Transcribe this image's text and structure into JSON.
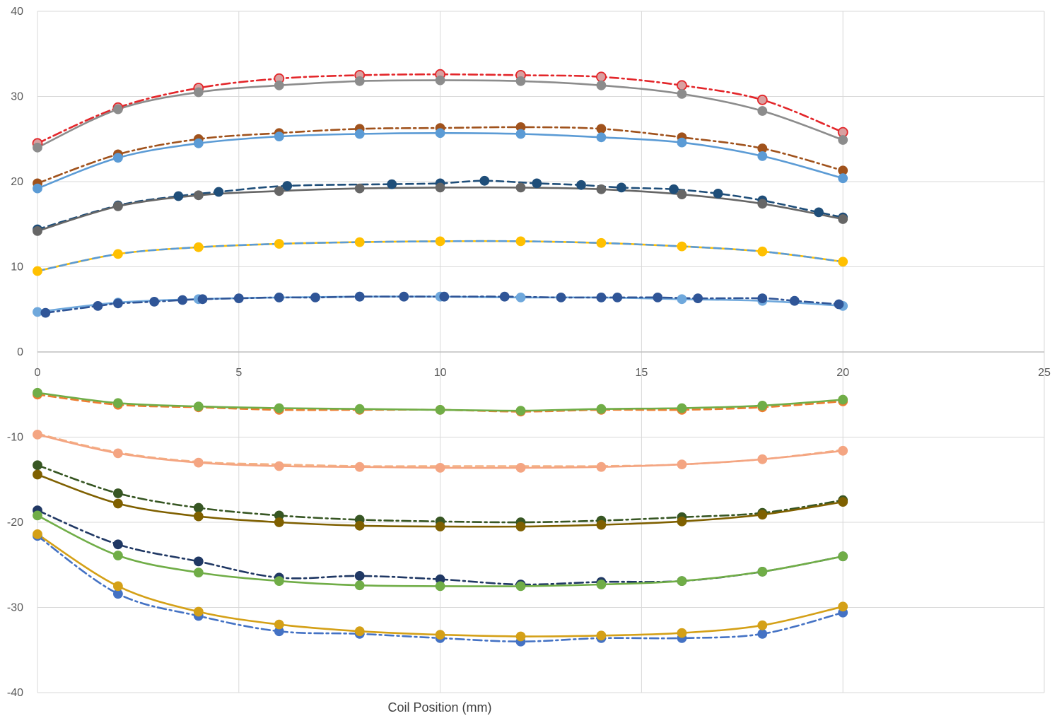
{
  "chart_data": {
    "type": "scatter",
    "title": "",
    "xlabel": "Coil Position (mm)",
    "ylabel": "",
    "xlim": [
      0,
      25
    ],
    "ylim": [
      -40,
      40
    ],
    "x_ticks": [
      0,
      5,
      10,
      15,
      20,
      25
    ],
    "y_ticks": [
      -40,
      -30,
      -20,
      -10,
      0,
      10,
      20,
      30,
      40
    ],
    "x_tick_labels": [
      "0",
      "5",
      "10",
      "15",
      "20",
      "25"
    ],
    "y_tick_labels": [
      "-40",
      "-30",
      "-20",
      "-10",
      "0",
      "10",
      "20",
      "30",
      "40"
    ],
    "grid": true,
    "legend": "none",
    "series": [
      {
        "color": "#e3262a",
        "dash": "dashdot",
        "smooth": true,
        "marker": "hollow",
        "x": [
          0,
          2,
          4,
          6,
          8,
          10,
          12,
          14,
          16,
          18,
          20
        ],
        "y": [
          24.5,
          28.7,
          31.0,
          32.1,
          32.5,
          32.6,
          32.5,
          32.3,
          31.3,
          29.6,
          25.8
        ]
      },
      {
        "color": "#8c8c8c",
        "dash": "solid",
        "smooth": true,
        "marker": "filled",
        "x": [
          0,
          2,
          4,
          6,
          8,
          10,
          12,
          14,
          16,
          18,
          20
        ],
        "y": [
          24.0,
          28.5,
          30.5,
          31.3,
          31.8,
          31.9,
          31.8,
          31.3,
          30.3,
          28.3,
          24.9
        ]
      },
      {
        "color": "#a0521c",
        "dash": "dashdot",
        "smooth": true,
        "marker": "filled",
        "x": [
          0,
          2,
          4,
          6,
          8,
          10,
          12,
          14,
          16,
          18,
          20
        ],
        "y": [
          19.8,
          23.2,
          25.0,
          25.7,
          26.2,
          26.3,
          26.4,
          26.2,
          25.2,
          23.9,
          21.3
        ]
      },
      {
        "color": "#5b9bd5",
        "dash": "solid",
        "smooth": true,
        "marker": "filled",
        "x": [
          0,
          2,
          4,
          6,
          8,
          10,
          12,
          14,
          16,
          18,
          20
        ],
        "y": [
          19.2,
          22.8,
          24.5,
          25.3,
          25.6,
          25.7,
          25.6,
          25.2,
          24.6,
          23.0,
          20.4
        ]
      },
      {
        "color": "#1f4e79",
        "dash": "dashed",
        "smooth": true,
        "marker": "filled",
        "x": [
          0,
          2,
          3.5,
          4.5,
          6.2,
          8.8,
          10,
          11.1,
          12.4,
          13.5,
          14.5,
          15.8,
          16.9,
          18,
          19.4,
          20
        ],
        "y": [
          14.4,
          17.2,
          18.3,
          18.8,
          19.5,
          19.7,
          19.8,
          20.1,
          19.8,
          19.6,
          19.3,
          19.1,
          18.6,
          17.8,
          16.4,
          15.8
        ]
      },
      {
        "color": "#666666",
        "dash": "solid",
        "smooth": true,
        "marker": "filled",
        "x": [
          0,
          2,
          4,
          6,
          8,
          10,
          12,
          14,
          16,
          18,
          20
        ],
        "y": [
          14.2,
          17.1,
          18.4,
          18.9,
          19.2,
          19.3,
          19.3,
          19.1,
          18.5,
          17.4,
          15.6
        ]
      },
      {
        "color": "#ffc000",
        "dash": "solid",
        "smooth": true,
        "marker": "filled",
        "x": [
          0,
          2,
          4,
          6,
          8,
          10,
          12,
          14,
          16,
          18,
          20
        ],
        "y": [
          9.5,
          11.5,
          12.3,
          12.7,
          12.9,
          13.0,
          13.0,
          12.8,
          12.4,
          11.8,
          10.6
        ]
      },
      {
        "color": "#5b9bd5",
        "dash": "dashed",
        "smooth": true,
        "marker": "none",
        "x": [
          0,
          2,
          4,
          6,
          8,
          10,
          12,
          14,
          16,
          18,
          20
        ],
        "y": [
          9.5,
          11.5,
          12.3,
          12.7,
          12.9,
          13.0,
          13.0,
          12.8,
          12.4,
          11.8,
          10.6
        ]
      },
      {
        "color": "#6fa8dc",
        "dash": "solid",
        "smooth": true,
        "marker": "filled",
        "x": [
          0,
          2,
          4,
          6,
          8,
          10,
          12,
          14,
          16,
          18,
          20
        ],
        "y": [
          4.7,
          5.8,
          6.2,
          6.4,
          6.5,
          6.5,
          6.4,
          6.4,
          6.2,
          6.0,
          5.4
        ]
      },
      {
        "color": "#2f5597",
        "dash": "dashdot",
        "smooth": true,
        "marker": "filled",
        "x": [
          0.2,
          1.5,
          2,
          2.9,
          3.6,
          4.1,
          5,
          6,
          6.9,
          8,
          9.1,
          10.1,
          11.6,
          13,
          14,
          14.4,
          15.4,
          16.4,
          18,
          18.8,
          19.9
        ],
        "y": [
          4.6,
          5.4,
          5.7,
          5.9,
          6.1,
          6.2,
          6.3,
          6.4,
          6.4,
          6.5,
          6.5,
          6.5,
          6.5,
          6.4,
          6.4,
          6.4,
          6.4,
          6.3,
          6.3,
          6.0,
          5.6
        ]
      },
      {
        "color": "#ed7d31",
        "dash": "dashed",
        "smooth": true,
        "marker": "filled",
        "x": [
          0,
          2,
          4,
          6,
          8,
          10,
          12,
          14,
          16,
          18,
          20
        ],
        "y": [
          -5.0,
          -6.2,
          -6.5,
          -6.8,
          -6.8,
          -6.8,
          -7.0,
          -6.8,
          -6.8,
          -6.5,
          -5.8
        ]
      },
      {
        "color": "#70ad47",
        "dash": "solid",
        "smooth": true,
        "marker": "filled",
        "x": [
          0,
          2,
          4,
          6,
          8,
          10,
          12,
          14,
          16,
          18,
          20
        ],
        "y": [
          -4.8,
          -6.0,
          -6.4,
          -6.6,
          -6.7,
          -6.8,
          -6.9,
          -6.7,
          -6.6,
          -6.3,
          -5.6
        ]
      },
      {
        "color": "#f4b183",
        "dash": "dashed",
        "smooth": true,
        "marker": "none",
        "x": [
          0,
          2,
          4,
          6,
          8,
          10,
          12,
          14,
          16,
          18,
          20
        ],
        "y": [
          -9.6,
          -11.8,
          -12.9,
          -13.2,
          -13.4,
          -13.4,
          -13.4,
          -13.4,
          -13.2,
          -12.6,
          -11.5
        ]
      },
      {
        "color": "#f4a582",
        "dash": "solid",
        "smooth": true,
        "marker": "filled",
        "x": [
          0,
          2,
          4,
          6,
          8,
          10,
          12,
          14,
          16,
          18,
          20
        ],
        "y": [
          -9.7,
          -11.9,
          -13.0,
          -13.4,
          -13.5,
          -13.6,
          -13.6,
          -13.5,
          -13.2,
          -12.6,
          -11.6
        ]
      },
      {
        "color": "#375623",
        "dash": "dashdot",
        "smooth": true,
        "marker": "filled",
        "x": [
          0,
          2,
          4,
          6,
          8,
          10,
          12,
          14,
          16,
          18,
          20
        ],
        "y": [
          -13.3,
          -16.6,
          -18.3,
          -19.2,
          -19.7,
          -19.9,
          -20.0,
          -19.8,
          -19.4,
          -18.9,
          -17.4
        ]
      },
      {
        "color": "#7f6000",
        "dash": "solid",
        "smooth": true,
        "marker": "filled",
        "x": [
          0,
          2,
          4,
          6,
          8,
          10,
          12,
          14,
          16,
          18,
          20
        ],
        "y": [
          -14.4,
          -17.8,
          -19.3,
          -20.0,
          -20.4,
          -20.5,
          -20.5,
          -20.3,
          -19.9,
          -19.1,
          -17.6
        ]
      },
      {
        "color": "#203864",
        "dash": "dashdot",
        "smooth": true,
        "marker": "filled",
        "x": [
          0,
          2,
          4,
          6,
          8,
          10,
          12,
          14,
          16,
          18,
          20
        ],
        "y": [
          -18.6,
          -22.6,
          -24.6,
          -26.5,
          -26.3,
          -26.7,
          -27.3,
          -27.0,
          -26.9,
          -25.8,
          -24.0
        ]
      },
      {
        "color": "#70ad47",
        "dash": "solid",
        "smooth": true,
        "marker": "filled",
        "x": [
          0,
          2,
          4,
          6,
          8,
          10,
          12,
          14,
          16,
          18,
          20
        ],
        "y": [
          -19.2,
          -23.9,
          -25.9,
          -26.9,
          -27.4,
          -27.5,
          -27.5,
          -27.3,
          -26.9,
          -25.8,
          -24.0
        ]
      },
      {
        "color": "#4472c4",
        "dash": "dashdot",
        "smooth": true,
        "marker": "filled",
        "x": [
          0,
          2,
          4,
          6,
          8,
          10,
          12,
          14,
          16,
          18,
          20
        ],
        "y": [
          -21.6,
          -28.4,
          -31.0,
          -32.8,
          -33.1,
          -33.6,
          -34.0,
          -33.6,
          -33.6,
          -33.1,
          -30.6
        ]
      },
      {
        "color": "#d4a017",
        "dash": "solid",
        "smooth": true,
        "marker": "filled",
        "x": [
          0,
          2,
          4,
          6,
          8,
          10,
          12,
          14,
          16,
          18,
          20
        ],
        "y": [
          -21.4,
          -27.5,
          -30.5,
          -32.0,
          -32.8,
          -33.2,
          -33.4,
          -33.3,
          -33.0,
          -32.1,
          -29.9
        ]
      }
    ]
  }
}
